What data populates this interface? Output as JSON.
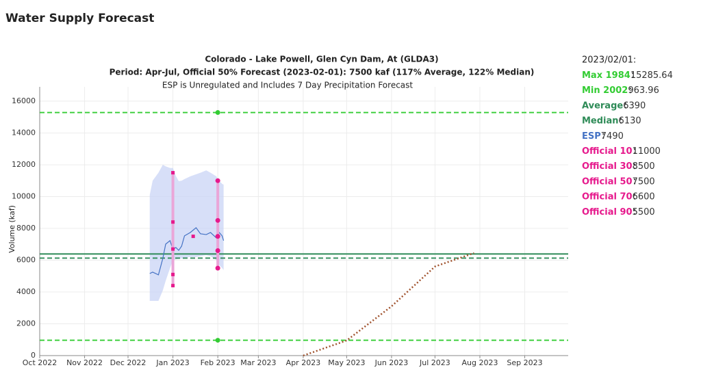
{
  "header": {
    "title": "Water Supply Forecast"
  },
  "chart_data": {
    "type": "line",
    "title": "Colorado - Lake Powell, Glen Cyn Dam, At (GLDA3)",
    "subtitle": "Period: Apr-Jul, Official 50% Forecast (2023-02-01): 7500 kaf (117% Average, 122% Median)",
    "note": "ESP is Unregulated and Includes 7 Day Precipitation Forecast",
    "ylabel": "Volume (kaf)",
    "xlim": [
      "2022-10-01",
      "2023-10-01"
    ],
    "xticks": [
      {
        "value": "2022-10-01",
        "label": "Oct 2022"
      },
      {
        "value": "2022-11-01",
        "label": "Nov 2022"
      },
      {
        "value": "2022-12-01",
        "label": "Dec 2022"
      },
      {
        "value": "2023-01-01",
        "label": "Jan 2023"
      },
      {
        "value": "2023-02-01",
        "label": "Feb 2023"
      },
      {
        "value": "2023-03-01",
        "label": "Mar 2023"
      },
      {
        "value": "2023-04-01",
        "label": "Apr 2023"
      },
      {
        "value": "2023-05-01",
        "label": "May 2023"
      },
      {
        "value": "2023-06-01",
        "label": "Jun 2023"
      },
      {
        "value": "2023-07-01",
        "label": "Jul 2023"
      },
      {
        "value": "2023-08-01",
        "label": "Aug 2023"
      },
      {
        "value": "2023-09-01",
        "label": "Sep 2023"
      }
    ],
    "ylim": [
      0,
      16900
    ],
    "yticks": [
      0,
      2000,
      4000,
      6000,
      8000,
      10000,
      12000,
      14000,
      16000
    ],
    "grid": true,
    "summary_date": "2023/02/01:",
    "references": [
      {
        "name": "Max 1984",
        "value": 15285.64,
        "color": "#33cc33",
        "style": "dashed",
        "marker_x": "2023-02-01"
      },
      {
        "name": "Min 2002",
        "value": 963.96,
        "color": "#33cc33",
        "style": "dashed",
        "marker_x": "2023-02-01"
      },
      {
        "name": "Average",
        "value": 6390,
        "color": "#2e8b57",
        "style": "solid"
      },
      {
        "name": "Median",
        "value": 6130,
        "color": "#2e8b57",
        "style": "dashed"
      }
    ],
    "esp": {
      "name": "ESP",
      "value": 7490,
      "color": "#4472c4",
      "band_color": "#c9d4f5",
      "x": [
        "2022-12-16",
        "2022-12-18",
        "2022-12-22",
        "2022-12-25",
        "2022-12-27",
        "2022-12-30",
        "2023-01-01",
        "2023-01-03",
        "2023-01-05",
        "2023-01-07",
        "2023-01-09",
        "2023-01-13",
        "2023-01-17",
        "2023-01-20",
        "2023-01-24",
        "2023-01-27",
        "2023-01-31",
        "2023-02-02",
        "2023-02-04",
        "2023-02-05"
      ],
      "values": [
        5160,
        5250,
        5080,
        6100,
        7010,
        7230,
        6670,
        6800,
        6620,
        6880,
        7530,
        7740,
        8040,
        7660,
        7610,
        7740,
        7400,
        7740,
        7530,
        7230
      ],
      "upper": [
        10100,
        11000,
        11500,
        12000,
        11900,
        11800,
        11800,
        11300,
        10970,
        11000,
        11100,
        11270,
        11400,
        11500,
        11650,
        11500,
        11270,
        11000,
        10800,
        10750
      ],
      "lower": [
        3440,
        3440,
        3440,
        4090,
        4700,
        5500,
        6000,
        6050,
        6080,
        6100,
        6150,
        6200,
        6200,
        6250,
        6320,
        6250,
        6000,
        5700,
        5500,
        5380
      ]
    },
    "official": [
      {
        "name": "Official 10",
        "color": "#e6198c",
        "x": [
          "2023-01-01",
          "2023-02-01"
        ],
        "values": [
          11500,
          11000
        ],
        "markers": [
          "square",
          "circle"
        ]
      },
      {
        "name": "Official 30",
        "color": "#e6198c",
        "x": [
          "2023-01-01",
          "2023-02-01"
        ],
        "values": [
          8400,
          8500
        ],
        "markers": [
          "square",
          "circle"
        ]
      },
      {
        "name": "Official 50",
        "color": "#e6198c",
        "x": [
          "2023-01-01",
          "2023-01-15",
          "2023-02-01"
        ],
        "values": [
          6700,
          7500,
          7500
        ],
        "markers": [
          "square",
          "square",
          "circle"
        ]
      },
      {
        "name": "Official 70",
        "color": "#e6198c",
        "x": [
          "2023-01-01",
          "2023-02-01"
        ],
        "values": [
          5100,
          6600
        ],
        "markers": [
          "square",
          "circle"
        ]
      },
      {
        "name": "Official 90",
        "color": "#e6198c",
        "x": [
          "2023-01-01",
          "2023-02-01"
        ],
        "values": [
          4400,
          5500
        ],
        "markers": [
          "square",
          "circle"
        ]
      }
    ],
    "range_color": "#eaa6d8",
    "observed": {
      "color": "#a0522d",
      "x": [
        "2023-04-01",
        "2023-05-01",
        "2023-06-01",
        "2023-07-01",
        "2023-07-28"
      ],
      "values": [
        0,
        950,
        3100,
        5600,
        6450
      ]
    }
  }
}
